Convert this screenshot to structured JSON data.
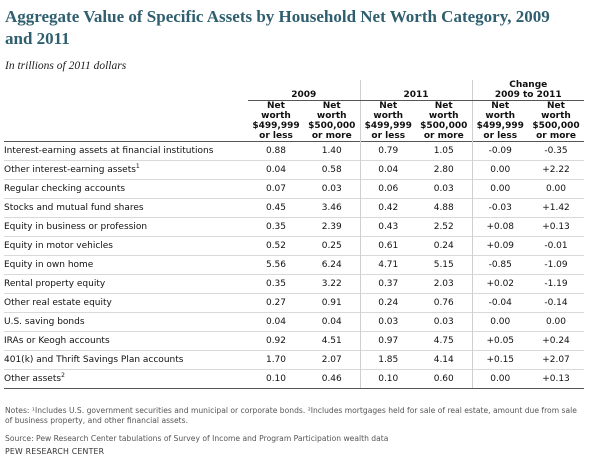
{
  "title": "Aggregate Value of Specific Assets by Household Net Worth Category, 2009 and 2011",
  "subtitle": "In trillions of 2011 dollars",
  "table": {
    "groups": [
      "2009",
      "2011",
      "Change\n2009 to 2011"
    ],
    "subheaders": [
      "Net worth $499,999 or less",
      "Net worth $500,000 or more",
      "Net worth $499,999 or less",
      "Net worth $500,000 or more",
      "Net worth $499,999 or less",
      "Net worth $500,000 or more"
    ],
    "rows": [
      {
        "label": "Interest-earning assets at financial institutions",
        "sup": "",
        "values": [
          "0.88",
          "1.40",
          "0.79",
          "1.05",
          "-0.09",
          "-0.35"
        ]
      },
      {
        "label": "Other interest-earning assets",
        "sup": "1",
        "values": [
          "0.04",
          "0.58",
          "0.04",
          "2.80",
          "0.00",
          "+2.22"
        ]
      },
      {
        "label": "Regular checking accounts",
        "sup": "",
        "values": [
          "0.07",
          "0.03",
          "0.06",
          "0.03",
          "0.00",
          "0.00"
        ]
      },
      {
        "label": "Stocks and mutual fund shares",
        "sup": "",
        "values": [
          "0.45",
          "3.46",
          "0.42",
          "4.88",
          "-0.03",
          "+1.42"
        ]
      },
      {
        "label": "Equity in business or profession",
        "sup": "",
        "values": [
          "0.35",
          "2.39",
          "0.43",
          "2.52",
          "+0.08",
          "+0.13"
        ]
      },
      {
        "label": "Equity in motor vehicles",
        "sup": "",
        "values": [
          "0.52",
          "0.25",
          "0.61",
          "0.24",
          "+0.09",
          "-0.01"
        ]
      },
      {
        "label": "Equity in own home",
        "sup": "",
        "values": [
          "5.56",
          "6.24",
          "4.71",
          "5.15",
          "-0.85",
          "-1.09"
        ]
      },
      {
        "label": "Rental property equity",
        "sup": "",
        "values": [
          "0.35",
          "3.22",
          "0.37",
          "2.03",
          "+0.02",
          "-1.19"
        ]
      },
      {
        "label": "Other real estate equity",
        "sup": "",
        "values": [
          "0.27",
          "0.91",
          "0.24",
          "0.76",
          "-0.04",
          "-0.14"
        ]
      },
      {
        "label": "U.S. saving bonds",
        "sup": "",
        "values": [
          "0.04",
          "0.04",
          "0.03",
          "0.03",
          "0.00",
          "0.00"
        ]
      },
      {
        "label": "IRAs or Keogh accounts",
        "sup": "",
        "values": [
          "0.92",
          "4.51",
          "0.97",
          "4.75",
          "+0.05",
          "+0.24"
        ]
      },
      {
        "label": "401(k) and Thrift Savings Plan accounts",
        "sup": "",
        "values": [
          "1.70",
          "2.07",
          "1.85",
          "4.14",
          "+0.15",
          "+2.07"
        ]
      },
      {
        "label": "Other assets",
        "sup": "2",
        "values": [
          "0.10",
          "0.46",
          "0.10",
          "0.60",
          "0.00",
          "+0.13"
        ]
      }
    ]
  },
  "notes": "Notes: ¹Includes U.S. government securities and municipal or corporate bonds. ²Includes mortgages held for sale of real estate, amount due from sale of business property, and other financial assets.",
  "source": "Source: Pew Research Center tabulations of Survey of Income and Program Participation wealth data",
  "brand": "PEW RESEARCH CENTER"
}
